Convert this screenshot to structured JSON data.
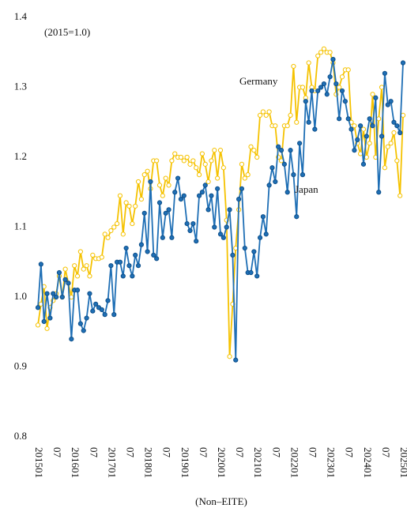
{
  "chart_data": {
    "type": "line",
    "annotation": "(2015=1.0)",
    "x_label": "(Non–EITE)",
    "categories": [
      "201501",
      null,
      null,
      null,
      null,
      null,
      "07",
      null,
      null,
      null,
      null,
      null,
      "201601",
      null,
      null,
      null,
      null,
      null,
      "07",
      null,
      null,
      null,
      null,
      null,
      "201701",
      null,
      null,
      null,
      null,
      null,
      "07",
      null,
      null,
      null,
      null,
      null,
      "201801",
      null,
      null,
      null,
      null,
      null,
      "07",
      null,
      null,
      null,
      null,
      null,
      "201901",
      null,
      null,
      null,
      null,
      null,
      "07",
      null,
      null,
      null,
      null,
      null,
      "202001",
      null,
      null,
      null,
      null,
      null,
      "07",
      null,
      null,
      null,
      null,
      null,
      "202101",
      null,
      null,
      null,
      null,
      null,
      "07",
      null,
      null,
      null,
      null,
      null,
      "202201",
      null,
      null,
      null,
      null,
      null,
      "07",
      null,
      null,
      null,
      null,
      null,
      "202301",
      null,
      null,
      null,
      null,
      null,
      "07",
      null,
      null,
      null,
      null,
      null,
      "202401",
      null,
      null,
      null,
      null,
      null,
      "07",
      null,
      null,
      null,
      null,
      null,
      "202501"
    ],
    "series": [
      {
        "name": "Germany",
        "color": "#f5c200",
        "marker": "open",
        "values": [
          0.96,
          0.99,
          1.015,
          0.955,
          0.985,
          0.995,
          1.005,
          1.03,
          1.0,
          1.04,
          1.02,
          1.0,
          1.045,
          1.03,
          1.065,
          1.04,
          1.045,
          1.03,
          1.06,
          1.055,
          1.055,
          1.057,
          1.09,
          1.085,
          1.095,
          1.1,
          1.105,
          1.145,
          1.09,
          1.135,
          1.13,
          1.105,
          1.13,
          1.165,
          1.14,
          1.175,
          1.18,
          1.155,
          1.195,
          1.195,
          1.16,
          1.145,
          1.17,
          1.16,
          1.195,
          1.205,
          1.2,
          1.2,
          1.195,
          1.2,
          1.19,
          1.195,
          1.185,
          1.175,
          1.205,
          1.19,
          1.165,
          1.195,
          1.21,
          1.17,
          1.21,
          1.185,
          1.11,
          0.915,
          0.99,
          1.07,
          1.125,
          1.19,
          1.17,
          1.175,
          1.215,
          1.21,
          1.2,
          1.26,
          1.265,
          1.26,
          1.265,
          1.245,
          1.245,
          1.2,
          1.195,
          1.245,
          1.245,
          1.26,
          1.33,
          1.25,
          1.3,
          1.3,
          1.285,
          1.335,
          1.3,
          1.295,
          1.345,
          1.35,
          1.355,
          1.35,
          1.35,
          1.335,
          1.29,
          1.3,
          1.315,
          1.325,
          1.325,
          1.25,
          1.245,
          1.22,
          1.205,
          1.24,
          1.2,
          1.22,
          1.29,
          1.2,
          1.255,
          1.3,
          1.185,
          1.215,
          1.22,
          1.235,
          1.195,
          1.145,
          1.26
        ]
      },
      {
        "name": "Japan",
        "color": "#1f6fb5",
        "marker": "filled",
        "values": [
          0.985,
          1.047,
          0.965,
          1.005,
          0.97,
          1.005,
          1.0,
          1.035,
          1.0,
          1.025,
          1.02,
          0.94,
          1.01,
          1.01,
          0.962,
          0.952,
          0.97,
          1.005,
          0.98,
          0.99,
          0.985,
          0.982,
          0.975,
          0.995,
          1.045,
          0.975,
          1.05,
          1.05,
          1.03,
          1.07,
          1.045,
          1.03,
          1.06,
          1.045,
          1.075,
          1.12,
          1.065,
          1.165,
          1.06,
          1.055,
          1.135,
          1.085,
          1.12,
          1.125,
          1.085,
          1.15,
          1.17,
          1.14,
          1.145,
          1.105,
          1.095,
          1.105,
          1.08,
          1.145,
          1.15,
          1.16,
          1.125,
          1.145,
          1.1,
          1.155,
          1.09,
          1.085,
          1.1,
          1.125,
          1.06,
          0.91,
          1.14,
          1.155,
          1.07,
          1.035,
          1.035,
          1.065,
          1.03,
          1.085,
          1.115,
          1.09,
          1.16,
          1.185,
          1.165,
          1.215,
          1.21,
          1.19,
          1.15,
          1.21,
          1.175,
          1.115,
          1.22,
          1.175,
          1.28,
          1.25,
          1.295,
          1.24,
          1.295,
          1.3,
          1.305,
          1.29,
          1.315,
          1.34,
          1.305,
          1.255,
          1.295,
          1.28,
          1.255,
          1.24,
          1.21,
          1.225,
          1.245,
          1.19,
          1.23,
          1.255,
          1.245,
          1.285,
          1.15,
          1.23,
          1.32,
          1.275,
          1.28,
          1.25,
          1.245,
          1.235,
          1.335
        ]
      }
    ],
    "ylim": [
      0.8,
      1.4
    ],
    "yticks": [
      0.8,
      0.9,
      {
        "value": 1.0,
        "label": "1.0"
      },
      1.1,
      1.2,
      1.3,
      1.4
    ],
    "grid": false
  }
}
